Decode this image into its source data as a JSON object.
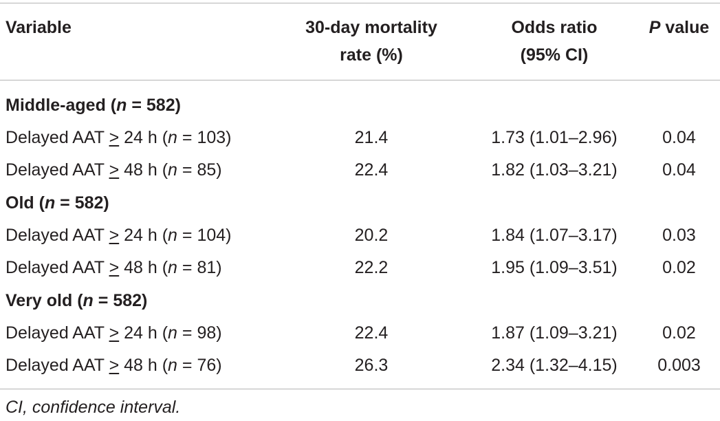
{
  "header": {
    "variable": "Variable",
    "mortality_line1": "30-day mortality",
    "mortality_line2": "rate (%)",
    "odds_line1": "Odds ratio",
    "odds_line2": "(95% CI)",
    "p_italic": "P",
    "p_rest": " value"
  },
  "groups": [
    {
      "name": "Middle-aged",
      "n_prefix": " (",
      "n_italic": "n",
      "n_suffix": " = 582)",
      "rows": [
        {
          "pre": "Delayed AAT ",
          "ge": ">",
          "mid": " 24 h (",
          "n": "n",
          "post": " = 103)",
          "mortality": "21.4",
          "odds": "1.73 (1.01–2.96)",
          "p": "0.04"
        },
        {
          "pre": "Delayed AAT ",
          "ge": ">",
          "mid": " 48 h (",
          "n": "n",
          "post": " = 85)",
          "mortality": "22.4",
          "odds": "1.82 (1.03–3.21)",
          "p": "0.04"
        }
      ]
    },
    {
      "name": "Old",
      "n_prefix": " (",
      "n_italic": "n",
      "n_suffix": " = 582)",
      "rows": [
        {
          "pre": "Delayed AAT ",
          "ge": ">",
          "mid": " 24 h (",
          "n": "n",
          "post": " = 104)",
          "mortality": "20.2",
          "odds": "1.84 (1.07–3.17)",
          "p": "0.03"
        },
        {
          "pre": "Delayed AAT ",
          "ge": ">",
          "mid": " 48 h (",
          "n": "n",
          "post": " = 81)",
          "mortality": "22.2",
          "odds": "1.95 (1.09–3.51)",
          "p": "0.02"
        }
      ]
    },
    {
      "name": "Very old",
      "n_prefix": " (",
      "n_italic": "n",
      "n_suffix": " = 582)",
      "rows": [
        {
          "pre": "Delayed AAT ",
          "ge": ">",
          "mid": " 24 h (",
          "n": "n",
          "post": " = 98)",
          "mortality": "22.4",
          "odds": "1.87 (1.09–3.21)",
          "p": "0.02"
        },
        {
          "pre": "Delayed AAT ",
          "ge": ">",
          "mid": " 48 h (",
          "n": "n",
          "post": " = 76)",
          "mortality": "26.3",
          "odds": "2.34 (1.32–4.15)",
          "p": "0.003"
        }
      ]
    }
  ],
  "footnote": "CI, confidence interval."
}
